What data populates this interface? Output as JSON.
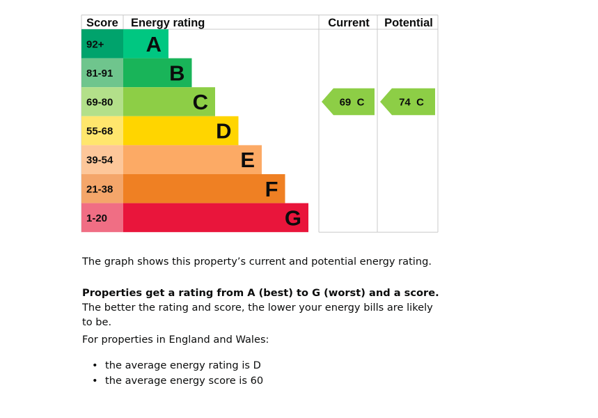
{
  "chart_data": {
    "type": "bar",
    "headers": {
      "score": "Score",
      "rating": "Energy rating",
      "current": "Current",
      "potential": "Potential"
    },
    "bands": [
      {
        "score": "92+",
        "letter": "A",
        "fill": "#008054",
        "score_bg": "#00a36c",
        "bar_color": "#00c781"
      },
      {
        "score": "81-91",
        "letter": "B",
        "fill": "#19b459",
        "score_bg": "#6fc58d",
        "bar_color": "#19b459"
      },
      {
        "score": "69-80",
        "letter": "C",
        "fill": "#8dce46",
        "score_bg": "#b3e08a",
        "bar_color": "#8dce46"
      },
      {
        "score": "55-68",
        "letter": "D",
        "fill": "#ffd500",
        "score_bg": "#ffe66d",
        "bar_color": "#ffd500"
      },
      {
        "score": "39-54",
        "letter": "E",
        "fill": "#fcaa65",
        "score_bg": "#fdc79a",
        "bar_color": "#fcaa65"
      },
      {
        "score": "21-38",
        "letter": "F",
        "fill": "#ef8023",
        "score_bg": "#f4a66a",
        "bar_color": "#ef8023"
      },
      {
        "score": "1-20",
        "letter": "G",
        "fill": "#e9153b",
        "score_bg": "#f06e84",
        "bar_color": "#e9153b"
      }
    ],
    "current": {
      "value": 69,
      "letter": "C",
      "label": "69  C",
      "color": "#8dce46"
    },
    "potential": {
      "value": 74,
      "letter": "C",
      "label": "74  C",
      "color": "#8dce46"
    }
  },
  "text": {
    "intro": "The graph shows this property’s current and potential energy rating.",
    "bold_lead": "Properties get a rating from A (best) to G (worst) and a score.",
    "lead_rest": " The better the rating and score, the lower your energy bills are likely to be.",
    "region": "For properties in England and Wales:",
    "bullets": [
      "the average energy rating is D",
      "the average energy score is 60"
    ]
  }
}
